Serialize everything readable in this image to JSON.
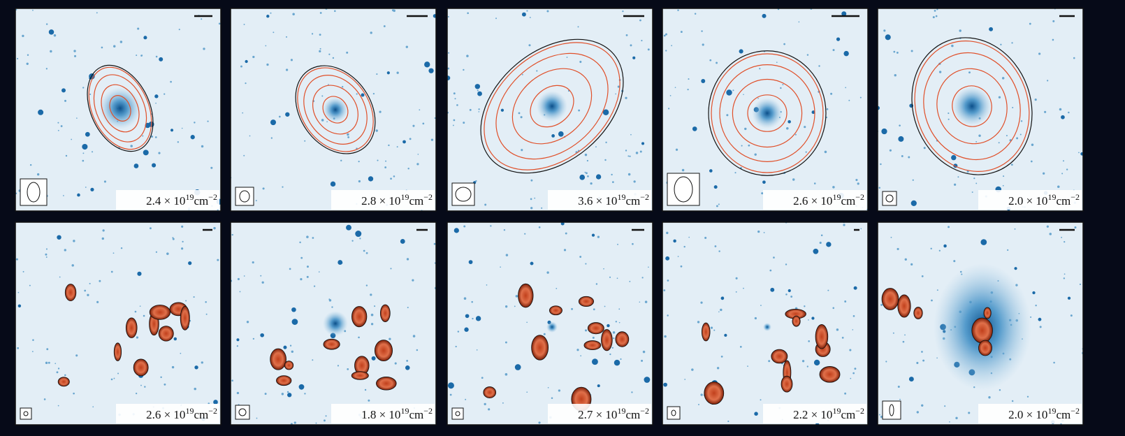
{
  "panels": [
    {
      "coefficient": "2.4 × 10",
      "exponent": "19",
      "unit": "cm",
      "unit_exponent": "−2"
    },
    {
      "coefficient": "2.8 × 10",
      "exponent": "19",
      "unit": "cm",
      "unit_exponent": "−2"
    },
    {
      "coefficient": "3.6 × 10",
      "exponent": "19",
      "unit": "cm",
      "unit_exponent": "−2"
    },
    {
      "coefficient": "2.6 × 10",
      "exponent": "19",
      "unit": "cm",
      "unit_exponent": "−2"
    },
    {
      "coefficient": "2.0 × 10",
      "exponent": "19",
      "unit": "cm",
      "unit_exponent": "−2"
    },
    {
      "coefficient": "2.6 × 10",
      "exponent": "19",
      "unit": "cm",
      "unit_exponent": "−2"
    },
    {
      "coefficient": "1.8 × 10",
      "exponent": "19",
      "unit": "cm",
      "unit_exponent": "−2"
    },
    {
      "coefficient": "2.7 × 10",
      "exponent": "19",
      "unit": "cm",
      "unit_exponent": "−2"
    },
    {
      "coefficient": "2.2 × 10",
      "exponent": "19",
      "unit": "cm",
      "unit_exponent": "−2"
    },
    {
      "coefficient": "2.0 × 10",
      "exponent": "19",
      "unit": "cm",
      "unit_exponent": "−2"
    }
  ]
}
